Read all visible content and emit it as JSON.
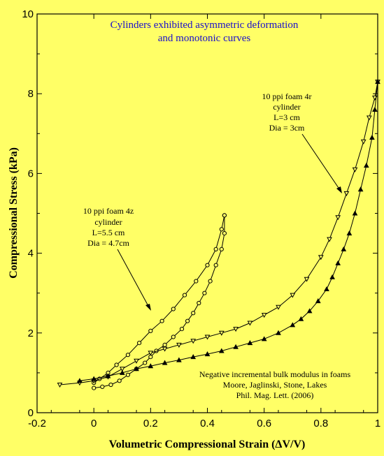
{
  "chart_data": {
    "type": "scatter",
    "title_lines": [
      "Cylinders exhibited asymmetric deformation",
      "and monotonic curves"
    ],
    "xlabel": "Volumetric Compressional Strain (ΔV/V)",
    "ylabel": "Compressional Stress (kPa)",
    "xlim": [
      -0.2,
      1.0
    ],
    "ylim": [
      0,
      10
    ],
    "xticks": [
      "-0.2",
      "0",
      "0.2",
      "0.4",
      "0.6",
      "0.8",
      "1"
    ],
    "yticks": [
      "0",
      "2",
      "4",
      "6",
      "8",
      "10"
    ],
    "grid": false,
    "colors": {
      "background": "#ffff66",
      "title": "#1a0ecc",
      "series": "#000000"
    },
    "annotations": {
      "specimen_4z": [
        "10 ppi foam 4z",
        "cylinder",
        "L=5.5 cm",
        "Dia = 4.7cm"
      ],
      "specimen_4r": [
        "10 ppi foam 4r",
        "cylinder",
        "L=3 cm",
        "Dia = 3cm"
      ],
      "reference": [
        "Negative incremental  bulk modulus in foams",
        "Moore, Jaglinski, Stone, Lakes",
        "Phil. Mag. Lett. (2006)"
      ]
    },
    "series": [
      {
        "marker": "circle",
        "x": [
          0.0,
          0.02,
          0.05,
          0.08,
          0.12,
          0.16,
          0.2,
          0.24,
          0.28,
          0.32,
          0.36,
          0.4,
          0.43,
          0.45,
          0.46
        ],
        "y": [
          0.75,
          0.85,
          1.0,
          1.2,
          1.45,
          1.75,
          2.05,
          2.3,
          2.6,
          2.95,
          3.3,
          3.7,
          4.1,
          4.6,
          4.95
        ]
      },
      {
        "marker": "circle",
        "x": [
          0.46,
          0.46,
          0.45,
          0.43,
          0.41,
          0.39,
          0.37,
          0.35,
          0.33,
          0.31,
          0.28,
          0.25,
          0.22,
          0.2,
          0.18,
          0.15,
          0.12,
          0.09,
          0.06,
          0.03,
          0.0
        ],
        "y": [
          4.95,
          4.5,
          4.1,
          3.7,
          3.3,
          3.0,
          2.75,
          2.5,
          2.3,
          2.1,
          1.9,
          1.7,
          1.55,
          1.4,
          1.25,
          1.1,
          0.95,
          0.8,
          0.7,
          0.65,
          0.62
        ]
      },
      {
        "marker": "triangle-down",
        "x": [
          -0.12,
          -0.05,
          0.0,
          0.05,
          0.1,
          0.15,
          0.2,
          0.25,
          0.3,
          0.35,
          0.4,
          0.45,
          0.5,
          0.55,
          0.6,
          0.65,
          0.7,
          0.75,
          0.8,
          0.83,
          0.86,
          0.89,
          0.92,
          0.95,
          0.97,
          0.99,
          1.0
        ],
        "y": [
          0.7,
          0.75,
          0.8,
          0.9,
          1.1,
          1.3,
          1.5,
          1.6,
          1.7,
          1.8,
          1.9,
          2.0,
          2.1,
          2.25,
          2.45,
          2.65,
          2.95,
          3.35,
          3.9,
          4.35,
          4.9,
          5.5,
          6.1,
          6.8,
          7.4,
          7.9,
          8.3
        ]
      },
      {
        "marker": "triangle-up",
        "x": [
          1.0,
          0.99,
          0.98,
          0.96,
          0.94,
          0.92,
          0.9,
          0.88,
          0.86,
          0.84,
          0.82,
          0.79,
          0.76,
          0.73,
          0.7,
          0.65,
          0.6,
          0.55,
          0.5,
          0.45,
          0.4,
          0.35,
          0.3,
          0.25,
          0.2,
          0.15,
          0.1,
          0.05,
          0.0,
          -0.05
        ],
        "y": [
          8.3,
          7.6,
          6.9,
          6.2,
          5.6,
          5.0,
          4.5,
          4.1,
          3.75,
          3.4,
          3.1,
          2.8,
          2.55,
          2.35,
          2.2,
          2.0,
          1.85,
          1.75,
          1.65,
          1.55,
          1.47,
          1.4,
          1.32,
          1.25,
          1.17,
          1.1,
          1.0,
          0.92,
          0.85,
          0.8
        ]
      }
    ]
  }
}
